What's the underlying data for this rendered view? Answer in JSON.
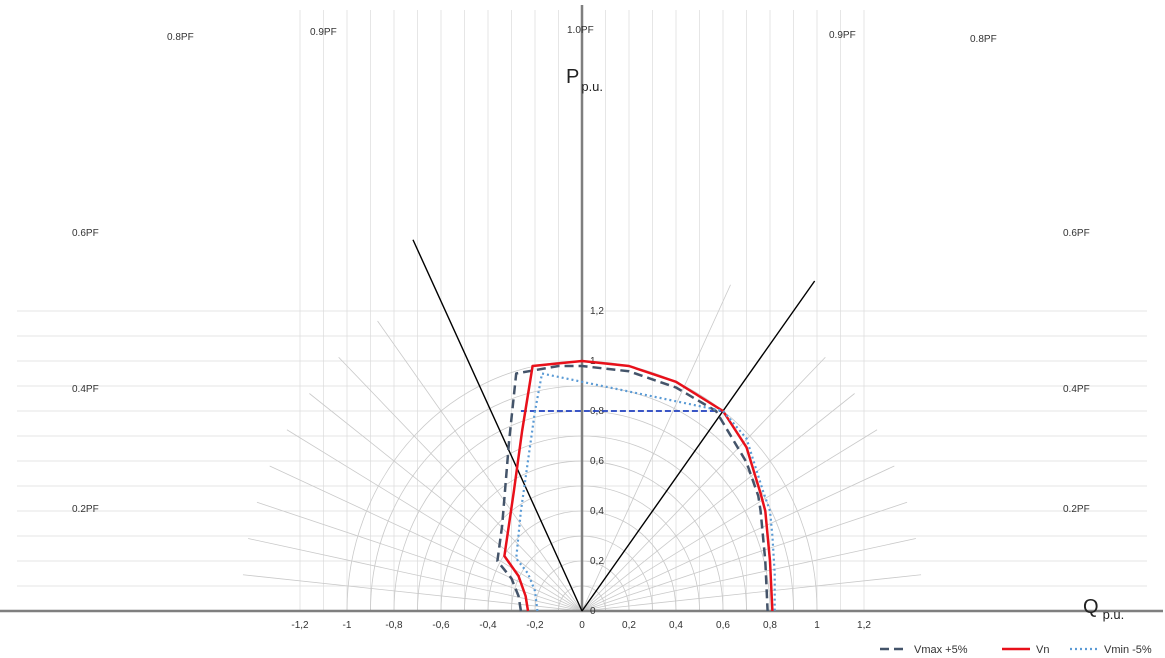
{
  "chart_data": {
    "type": "line",
    "axes": {
      "x_label_main": "Q",
      "x_label_sub": "p.u.",
      "y_label_main": "P",
      "y_label_sub": "p.u.",
      "xlim": [
        -1.2,
        1.2
      ],
      "ylim": [
        0,
        1.2
      ],
      "x_ticks": [
        {
          "value": -1.2,
          "label": "-1,2"
        },
        {
          "value": -1.0,
          "label": "-1"
        },
        {
          "value": -0.8,
          "label": "-0,8"
        },
        {
          "value": -0.6,
          "label": "-0,6"
        },
        {
          "value": -0.4,
          "label": "-0,4"
        },
        {
          "value": -0.2,
          "label": "-0,2"
        },
        {
          "value": 0.0,
          "label": "0"
        },
        {
          "value": 0.2,
          "label": "0,2"
        },
        {
          "value": 0.4,
          "label": "0,4"
        },
        {
          "value": 0.6,
          "label": "0,6"
        },
        {
          "value": 0.8,
          "label": "0,8"
        },
        {
          "value": 1.0,
          "label": "1"
        },
        {
          "value": 1.2,
          "label": "1,2"
        }
      ],
      "y_ticks": [
        {
          "value": 0.0,
          "label": "0"
        },
        {
          "value": 0.2,
          "label": "0,2"
        },
        {
          "value": 0.4,
          "label": "0,4"
        },
        {
          "value": 0.6,
          "label": "0,6"
        },
        {
          "value": 0.8,
          "label": "0,8"
        },
        {
          "value": 1.0,
          "label": "1"
        },
        {
          "value": 1.2,
          "label": "1,2"
        }
      ]
    },
    "grid": {
      "on": true,
      "polar_circles": [
        0.1,
        0.2,
        0.3,
        0.4,
        0.5,
        0.6,
        0.7,
        0.8,
        0.9,
        1.0
      ],
      "radial_pf": [
        0.1,
        0.2,
        0.3,
        0.4,
        0.5,
        0.6,
        0.7,
        0.8,
        0.9,
        1.0
      ]
    },
    "pf_labels": [
      {
        "text": "0.2PF",
        "pf": 0.2,
        "side": "left"
      },
      {
        "text": "0.4PF",
        "pf": 0.4,
        "side": "left"
      },
      {
        "text": "0.6PF",
        "pf": 0.6,
        "side": "left"
      },
      {
        "text": "0.8PF",
        "pf": 0.8,
        "side": "left"
      },
      {
        "text": "0.9PF",
        "pf": 0.9,
        "side": "left"
      },
      {
        "text": "1.0PF",
        "pf": 1.0,
        "side": "center"
      },
      {
        "text": "0.9PF",
        "pf": 0.9,
        "side": "right"
      },
      {
        "text": "0.8PF",
        "pf": 0.8,
        "side": "right"
      },
      {
        "text": "0.6PF",
        "pf": 0.6,
        "side": "right"
      },
      {
        "text": "0.4PF",
        "pf": 0.4,
        "side": "right"
      },
      {
        "text": "0.2PF",
        "pf": 0.2,
        "side": "right"
      }
    ],
    "reference_lines": [
      {
        "pf": 0.9,
        "side": "left",
        "color": "#000000"
      },
      {
        "pf": 0.8,
        "side": "right",
        "color": "#000000"
      },
      {
        "points": [
          [
            -0.26,
            0.8
          ],
          [
            0.6,
            0.8
          ]
        ],
        "color": "#1f3fbf",
        "dash": "dashed"
      }
    ],
    "series": [
      {
        "name": "Vmax +5%",
        "color": "#44546a",
        "style": "dashed",
        "points": [
          [
            -0.26,
            0.0
          ],
          [
            -0.27,
            0.06
          ],
          [
            -0.3,
            0.13
          ],
          [
            -0.36,
            0.2
          ],
          [
            -0.34,
            0.34
          ],
          [
            -0.31,
            0.68
          ],
          [
            -0.28,
            0.95
          ],
          [
            -0.1,
            0.98
          ],
          [
            0.0,
            0.98
          ],
          [
            0.2,
            0.959
          ],
          [
            0.4,
            0.894
          ],
          [
            0.57,
            0.8
          ],
          [
            0.7,
            0.595
          ],
          [
            0.75,
            0.46
          ],
          [
            0.76,
            0.4
          ],
          [
            0.78,
            0.2
          ],
          [
            0.79,
            0.0
          ]
        ]
      },
      {
        "name": "Vn",
        "color": "#e8101a",
        "style": "solid",
        "points": [
          [
            -0.23,
            0.0
          ],
          [
            -0.24,
            0.06
          ],
          [
            -0.27,
            0.14
          ],
          [
            -0.33,
            0.22
          ],
          [
            -0.29,
            0.48
          ],
          [
            -0.255,
            0.72
          ],
          [
            -0.21,
            0.98
          ],
          [
            0.0,
            1.0
          ],
          [
            0.2,
            0.98
          ],
          [
            0.4,
            0.917
          ],
          [
            0.6,
            0.8
          ],
          [
            0.7,
            0.655
          ],
          [
            0.76,
            0.47
          ],
          [
            0.78,
            0.4
          ],
          [
            0.8,
            0.2
          ],
          [
            0.81,
            0.0
          ]
        ]
      },
      {
        "name": "Vmin -5%",
        "color": "#5b9bd5",
        "style": "dotted",
        "points": [
          [
            -0.19,
            0.0
          ],
          [
            -0.2,
            0.08
          ],
          [
            -0.23,
            0.15
          ],
          [
            -0.28,
            0.21
          ],
          [
            -0.26,
            0.4
          ],
          [
            -0.2,
            0.8
          ],
          [
            -0.17,
            0.95
          ],
          [
            0.6,
            0.8
          ],
          [
            0.7,
            0.69
          ],
          [
            0.77,
            0.48
          ],
          [
            0.8,
            0.4
          ],
          [
            0.81,
            0.3
          ],
          [
            0.82,
            0.15
          ],
          [
            0.82,
            0.0
          ]
        ]
      }
    ],
    "legend": {
      "position": "bottom-right",
      "entries": [
        "Vmax +5%",
        "Vn",
        "Vmin -5%"
      ]
    }
  }
}
